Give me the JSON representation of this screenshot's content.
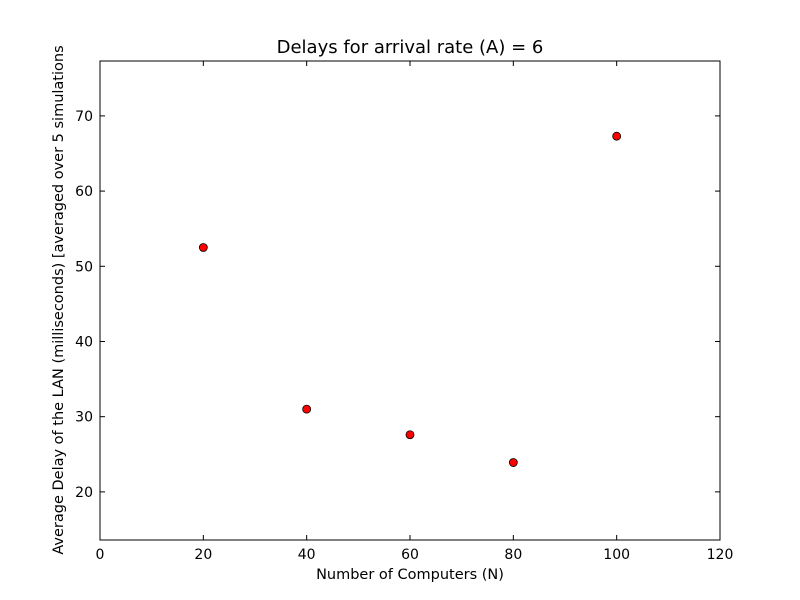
{
  "chart_data": {
    "type": "scatter",
    "title": "Delays for arrival rate (A) = 6",
    "xlabel": "Number of Computers (N)",
    "ylabel": "Average Delay of the LAN (milliseconds) [averaged over 5 simulations",
    "xlim": [
      0,
      120
    ],
    "ylim": [
      13.6,
      77.3
    ],
    "xticks": [
      0,
      20,
      40,
      60,
      80,
      100,
      120
    ],
    "yticks": [
      20,
      30,
      40,
      50,
      60,
      70
    ],
    "grid": false,
    "legend": "none",
    "series": [
      {
        "x": [
          20,
          40,
          60,
          80,
          100
        ],
        "y": [
          52.5,
          31.0,
          27.6,
          23.9,
          67.3
        ],
        "color": "#ff0000",
        "edge_color": "#000000",
        "marker": "circle"
      }
    ]
  }
}
